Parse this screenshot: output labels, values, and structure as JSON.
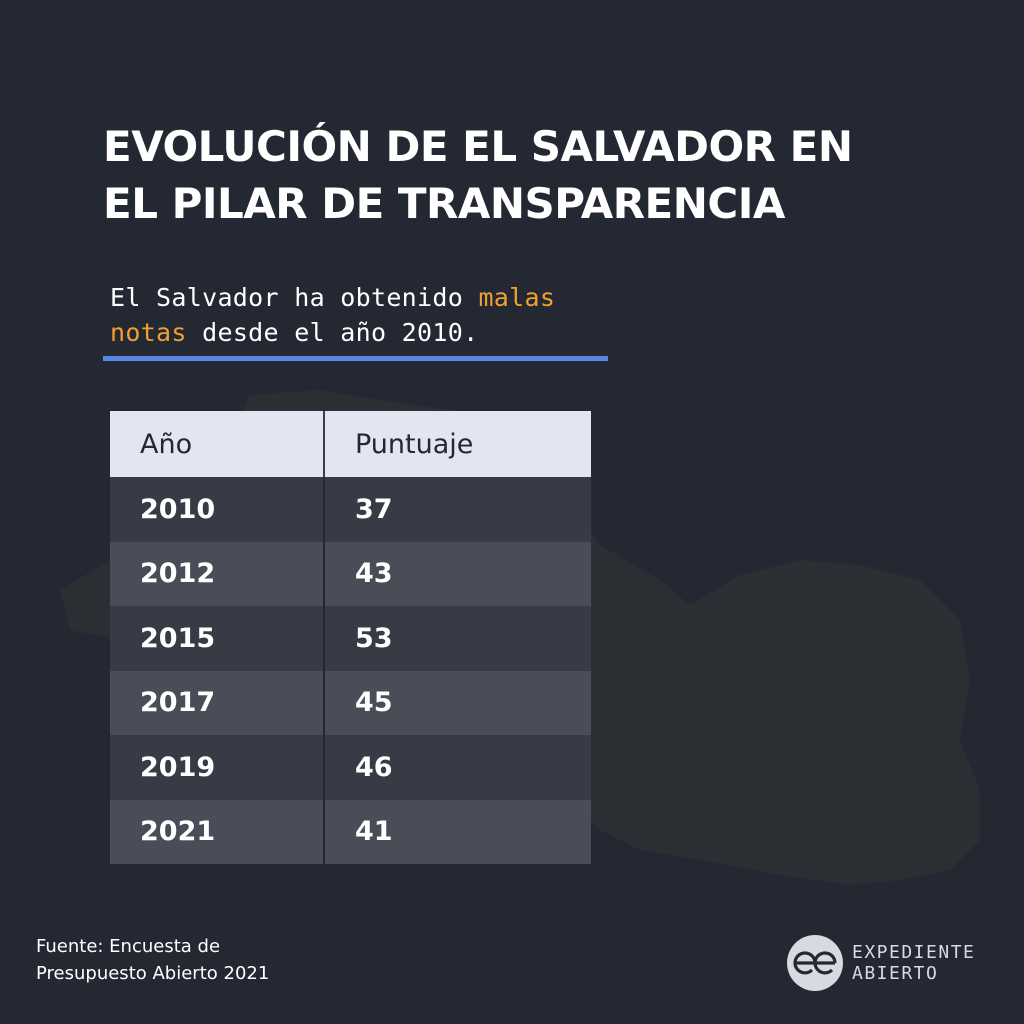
{
  "title": {
    "line1": "EVOLUCIÓN DE EL SALVADOR EN",
    "line2": "EL PILAR DE TRANSPARENCIA"
  },
  "subtitle": {
    "part1": "El Salvador ha obtenido ",
    "highlight": "malas notas",
    "part2": " desde el año 2010.",
    "highlight_color": "#f0a030"
  },
  "rule_color": "#5a86e0",
  "table": {
    "headers": [
      "Año",
      "Puntuaje"
    ],
    "rows": [
      [
        "2010",
        "37"
      ],
      [
        "2012",
        "43"
      ],
      [
        "2015",
        "53"
      ],
      [
        "2017",
        "45"
      ],
      [
        "2019",
        "46"
      ],
      [
        "2021",
        "41"
      ]
    ]
  },
  "source": {
    "line1": "Fuente: Encuesta de",
    "line2": "Presupuesto Abierto 2021"
  },
  "brand": {
    "line1": "EXPEDIENTE",
    "line2": "ABIERTO",
    "icon": "expediente-abierto-logo"
  }
}
